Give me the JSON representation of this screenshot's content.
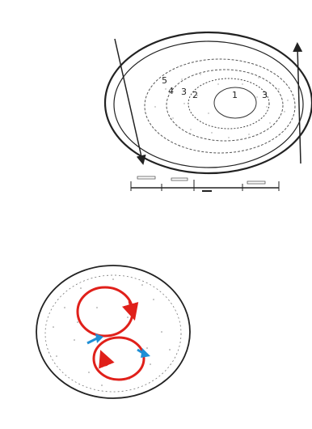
{
  "upper_figure": {
    "title_red": "",
    "title_black": "",
    "zone_numbers": [
      "5",
      "4",
      "3",
      "2",
      "1",
      "3"
    ],
    "core_labels": [
      "",
      ""
    ],
    "left_arrow_label": "",
    "right_arrow_label": "",
    "scale_label": "",
    "caption_lines": [
      "",
      "",
      ""
    ]
  },
  "lower_figure": {
    "title": "",
    "left_side_label": "",
    "right_side_label": "",
    "caption": ""
  },
  "colors": {
    "line": "#222222",
    "red_loop": "#e0201a",
    "blue_arrow": "#1e8fd6",
    "title_red": "#d81e1e"
  }
}
